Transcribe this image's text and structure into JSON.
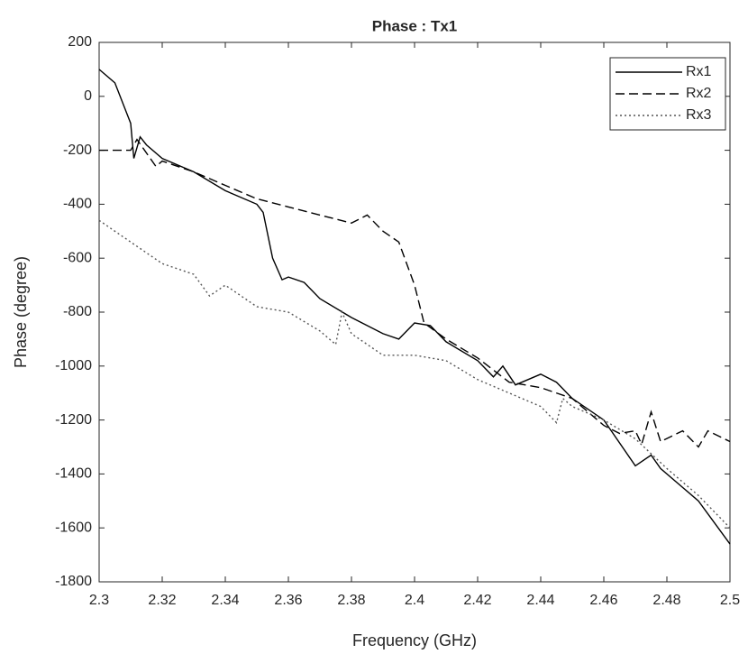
{
  "chart_data": {
    "type": "line",
    "title": "Phase : Tx1",
    "x_label": "Frequency (GHz)",
    "y_label": "Phase (degree)",
    "xlim": [
      2.3,
      2.5
    ],
    "xticks": [
      2.3,
      2.32,
      2.34,
      2.36,
      2.38,
      2.4,
      2.42,
      2.44,
      2.46,
      2.48,
      2.5
    ],
    "ylim": [
      -1800,
      200
    ],
    "yticks": [
      -1800,
      -1600,
      -1400,
      -1200,
      -1000,
      -800,
      -600,
      -400,
      -200,
      0,
      200
    ],
    "legend": "top-right",
    "series": [
      {
        "name": "Rx1",
        "color": "#000000",
        "dash": "solid",
        "x": [
          2.3,
          2.305,
          2.31,
          2.311,
          2.313,
          2.315,
          2.32,
          2.33,
          2.34,
          2.35,
          2.352,
          2.355,
          2.358,
          2.36,
          2.365,
          2.37,
          2.38,
          2.39,
          2.395,
          2.4,
          2.405,
          2.41,
          2.42,
          2.425,
          2.428,
          2.432,
          2.44,
          2.445,
          2.45,
          2.46,
          2.47,
          2.475,
          2.478,
          2.485,
          2.49,
          2.5
        ],
        "values": [
          100,
          50,
          -100,
          -230,
          -150,
          -180,
          -230,
          -280,
          -350,
          -400,
          -430,
          -600,
          -680,
          -670,
          -690,
          -750,
          -820,
          -880,
          -900,
          -840,
          -850,
          -910,
          -980,
          -1040,
          -1000,
          -1070,
          -1030,
          -1060,
          -1120,
          -1200,
          -1370,
          -1330,
          -1380,
          -1450,
          -1500,
          -1660
        ]
      },
      {
        "name": "Rx2",
        "color": "#000000",
        "dash": "dashed",
        "x": [
          2.3,
          2.31,
          2.312,
          2.318,
          2.32,
          2.33,
          2.34,
          2.35,
          2.36,
          2.37,
          2.38,
          2.385,
          2.39,
          2.395,
          2.4,
          2.403,
          2.41,
          2.42,
          2.43,
          2.44,
          2.45,
          2.46,
          2.465,
          2.47,
          2.472,
          2.475,
          2.478,
          2.485,
          2.49,
          2.493,
          2.5
        ],
        "values": [
          -200,
          -200,
          -160,
          -260,
          -240,
          -280,
          -330,
          -380,
          -410,
          -440,
          -470,
          -440,
          -500,
          -540,
          -700,
          -840,
          -900,
          -970,
          -1060,
          -1080,
          -1120,
          -1220,
          -1250,
          -1240,
          -1290,
          -1170,
          -1280,
          -1240,
          -1300,
          -1240,
          -1280
        ]
      },
      {
        "name": "Rx3",
        "color": "#555555",
        "dash": "dotted",
        "x": [
          2.3,
          2.31,
          2.32,
          2.33,
          2.335,
          2.34,
          2.35,
          2.36,
          2.37,
          2.375,
          2.377,
          2.38,
          2.39,
          2.4,
          2.41,
          2.42,
          2.43,
          2.44,
          2.445,
          2.447,
          2.45,
          2.46,
          2.47,
          2.48,
          2.49,
          2.5
        ],
        "values": [
          -460,
          -540,
          -620,
          -660,
          -740,
          -700,
          -780,
          -800,
          -870,
          -920,
          -800,
          -880,
          -960,
          -960,
          -980,
          -1050,
          -1100,
          -1150,
          -1210,
          -1120,
          -1150,
          -1200,
          -1270,
          -1380,
          -1480,
          -1600
        ]
      }
    ]
  }
}
